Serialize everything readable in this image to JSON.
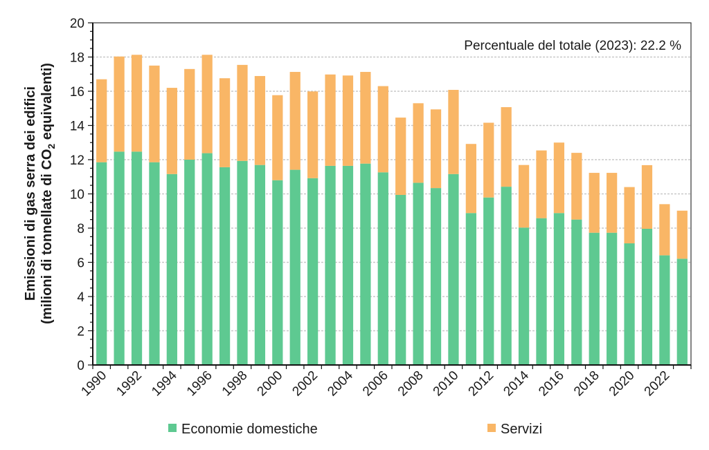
{
  "chart_data": {
    "type": "bar",
    "stacked": true,
    "title": "",
    "annotation": "Percentuale  del totale (2023):  22.2 %",
    "ylabel_line1": "Emissioni  di gas serra dei edifici",
    "ylabel_line2_pre": "(milioni di tonnellate di CO",
    "ylabel_line2_sub": "2",
    "ylabel_line2_post": " equivalenti)",
    "xlabel": "",
    "ylim": [
      0,
      20
    ],
    "yticks": [
      0,
      2,
      4,
      6,
      8,
      10,
      12,
      14,
      16,
      18,
      20
    ],
    "grid": true,
    "legend_position": "bottom",
    "categories": [
      "1990",
      "1991",
      "1992",
      "1993",
      "1994",
      "1995",
      "1996",
      "1997",
      "1998",
      "1999",
      "2000",
      "2001",
      "2002",
      "2003",
      "2004",
      "2005",
      "2006",
      "2007",
      "2008",
      "2009",
      "2010",
      "2011",
      "2012",
      "2013",
      "2014",
      "2015",
      "2016",
      "2017",
      "2018",
      "2019",
      "2020",
      "2021",
      "2022",
      "2023"
    ],
    "xtick_labels": [
      "1990",
      "",
      "1992",
      "",
      "1994",
      "",
      "1996",
      "",
      "1998",
      "",
      "2000",
      "",
      "2002",
      "",
      "2004",
      "",
      "2006",
      "",
      "2008",
      "",
      "2010",
      "",
      "2012",
      "",
      "2014",
      "",
      "2016",
      "",
      "2018",
      "",
      "2020",
      "",
      "2022",
      ""
    ],
    "series": [
      {
        "name": "Economie domestiche",
        "color": "#5ec991",
        "values": [
          11.85,
          12.47,
          12.47,
          11.85,
          11.16,
          12.0,
          12.38,
          11.56,
          11.93,
          11.69,
          10.8,
          11.41,
          10.92,
          11.64,
          11.64,
          11.77,
          11.26,
          9.94,
          10.65,
          10.34,
          11.16,
          8.88,
          9.79,
          10.42,
          8.03,
          8.58,
          8.88,
          8.5,
          7.73,
          7.73,
          7.11,
          7.96,
          6.41,
          6.21
        ]
      },
      {
        "name": "Servizi",
        "color": "#f9b666",
        "values": [
          4.85,
          5.56,
          5.66,
          5.65,
          5.04,
          5.3,
          5.75,
          5.2,
          5.61,
          5.2,
          4.97,
          5.72,
          5.07,
          5.34,
          5.28,
          5.36,
          5.04,
          4.52,
          4.65,
          4.6,
          4.92,
          4.04,
          4.37,
          4.65,
          3.66,
          3.96,
          4.12,
          3.9,
          3.5,
          3.5,
          3.29,
          3.72,
          2.99,
          2.81
        ]
      }
    ]
  }
}
